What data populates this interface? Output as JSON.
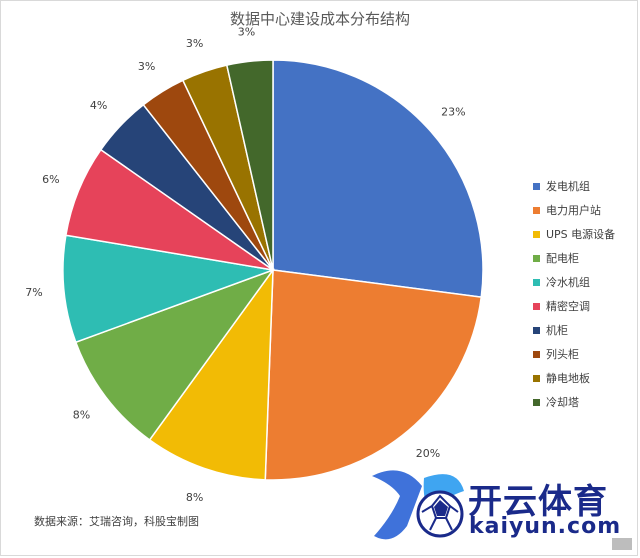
{
  "chart_data": {
    "type": "pie",
    "title": "数据中心建设成本分布结构",
    "categories": [
      "发电机组",
      "电力用户站",
      "UPS 电源设备",
      "配电柜",
      "冷水机组",
      "精密空调",
      "机柜",
      "列头柜",
      "静电地板",
      "冷却塔"
    ],
    "values": [
      23,
      20,
      8,
      8,
      7,
      6,
      4,
      3,
      3,
      3
    ],
    "value_labels": [
      "23%",
      "20%",
      "8%",
      "8%",
      "7%",
      "6%",
      "4%",
      "3%",
      "3%",
      "3%"
    ],
    "colors": [
      "#4472C4",
      "#ED7D31",
      "#F2BB05",
      "#70AD47",
      "#2EBDB3",
      "#E6435A",
      "#264478",
      "#9E480E",
      "#997300",
      "#43682B"
    ],
    "legend_position": "right"
  },
  "source_note": "数据来源：艾瑞咨询，科股宝制图",
  "watermark": {
    "brand_cn": "开云体育",
    "brand_en": "kaiyun.com",
    "logo_text": "K"
  }
}
